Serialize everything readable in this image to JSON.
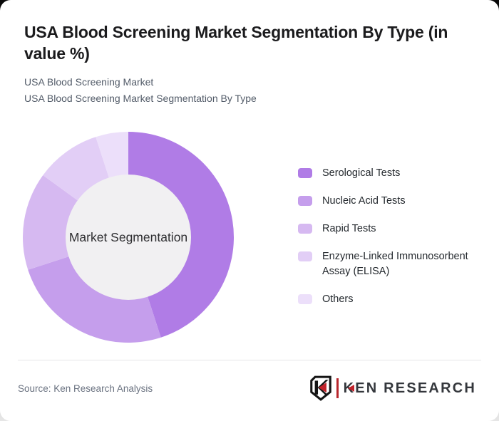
{
  "header": {
    "title": "USA Blood Screening Market Segmentation By Type (in value %)",
    "subtitle_line1": "USA Blood Screening Market",
    "subtitle_line2": "USA Blood Screening Market Segmentation By Type"
  },
  "chart_data": {
    "type": "pie",
    "subtype": "donut",
    "title": "USA Blood Screening Market Segmentation By Type (in value %)",
    "center_label": "Market Segmentation",
    "categories": [
      "Serological Tests",
      "Nucleic Acid Tests",
      "Rapid Tests",
      "Enzyme-Linked Immunosorbent Assay (ELISA)",
      "Others"
    ],
    "values": [
      45,
      25,
      15,
      10,
      5
    ],
    "values_estimated_from_arc_angles": true,
    "unit": "value %",
    "colors": [
      "#b07ce6",
      "#c59eec",
      "#d6b9f1",
      "#e2cef6",
      "#ecdffa"
    ],
    "start_angle_deg": 0,
    "direction": "clockwise",
    "inner_radius_ratio": 0.59,
    "hole_color": "#f1f0f2",
    "legend_position": "right",
    "data_labels_shown": false
  },
  "legend": {
    "items": [
      {
        "label": "Serological Tests",
        "color": "#b07ce6"
      },
      {
        "label": "Nucleic Acid Tests",
        "color": "#c59eec"
      },
      {
        "label": "Rapid Tests",
        "color": "#d6b9f1"
      },
      {
        "label": "Enzyme-Linked Immunosorbent Assay (ELISA)",
        "color": "#e2cef6"
      },
      {
        "label": "Others",
        "color": "#ecdffa"
      }
    ]
  },
  "footer": {
    "source": "Source: Ken Research Analysis",
    "logo_text": "KEN RESEARCH"
  },
  "colors": {
    "accent_red": "#c2222a",
    "title_text": "#1b1b1d",
    "subtitle_text": "#535c69",
    "divider": "#e6e6e8",
    "card_background": "#ffffff"
  }
}
